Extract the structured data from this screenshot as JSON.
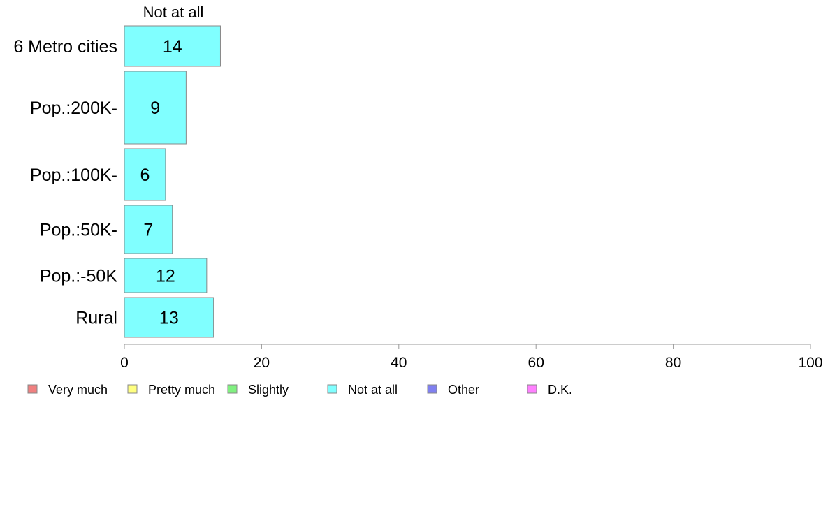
{
  "chart_data": {
    "type": "bar",
    "orientation": "horizontal",
    "stacked": true,
    "header": "Not at all",
    "categories": [
      "6 Metro cities",
      "Pop.:200K-",
      "Pop.:100K-",
      "Pop.:50K-",
      "Pop.:-50K",
      "Rural"
    ],
    "series": [
      {
        "name": "Very much",
        "color": "#f08080",
        "values": [
          null,
          null,
          null,
          null,
          null,
          null
        ]
      },
      {
        "name": "Pretty much",
        "color": "#ffff80",
        "values": [
          null,
          null,
          null,
          null,
          null,
          null
        ]
      },
      {
        "name": "Slightly",
        "color": "#80f080",
        "values": [
          null,
          null,
          null,
          null,
          null,
          null
        ]
      },
      {
        "name": "Not at all",
        "color": "#80ffff",
        "values": [
          14,
          9,
          6,
          7,
          12,
          13
        ]
      },
      {
        "name": "Other",
        "color": "#8080f0",
        "values": [
          null,
          null,
          null,
          null,
          null,
          null
        ]
      },
      {
        "name": "D.K.",
        "color": "#ff80ff",
        "values": [
          null,
          null,
          null,
          null,
          null,
          null
        ]
      }
    ],
    "xlim": [
      0,
      100
    ],
    "xticks": [
      0,
      20,
      40,
      60,
      80,
      100
    ],
    "bar_values_shown": [
      "14",
      "9",
      "6",
      "7",
      "12",
      "13"
    ],
    "legend_position": "bottom",
    "grid": false,
    "title": "",
    "xlabel": "",
    "ylabel": ""
  }
}
